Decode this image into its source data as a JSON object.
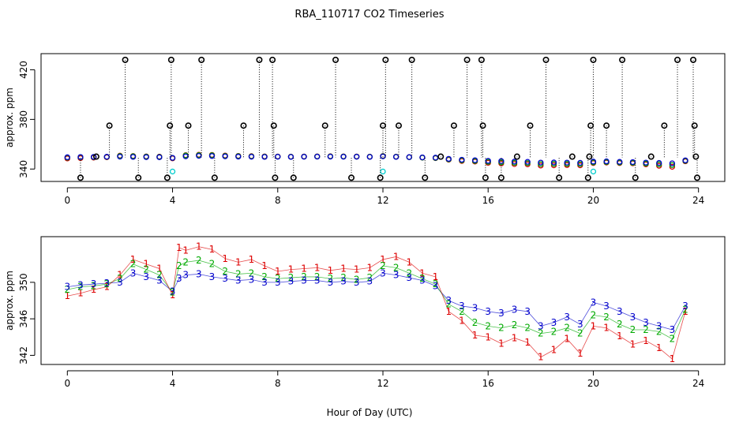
{
  "chart_data": [
    {
      "type": "scatter",
      "title": "RBA_110717  CO2 Timeseries",
      "ylabel": "approx. ppm",
      "xlabel": "",
      "xlim": [
        -1,
        25
      ],
      "ylim": [
        330,
        433
      ],
      "x_ticks": [
        0,
        4,
        8,
        12,
        16,
        20,
        24
      ],
      "y_ticks": [
        340,
        380,
        420
      ],
      "grid": false,
      "series": [
        {
          "color": "#d00000",
          "marker": "circle",
          "x": [
            0,
            0.5,
            1,
            1.5,
            2,
            2.5,
            3,
            3.5,
            4,
            4.5,
            5,
            5.5,
            6,
            6.5,
            7,
            7.5,
            8,
            8.5,
            9,
            9.5,
            10,
            10.5,
            11,
            11.5,
            12,
            12.5,
            13,
            13.5,
            14,
            14.5,
            15,
            15.5,
            16,
            16.5,
            17,
            17.5,
            18,
            18.5,
            19,
            19.5,
            20,
            20.5,
            21,
            21.5,
            22,
            22.5,
            23,
            23.5
          ],
          "values": [
            348.5,
            348.8,
            349.2,
            349.5,
            350.8,
            350.5,
            350.2,
            350.0,
            348.6,
            351.2,
            351.5,
            351.4,
            350.9,
            350.6,
            350.4,
            350.2,
            350.1,
            350.0,
            350.1,
            350.2,
            350.3,
            350.2,
            350.1,
            350.0,
            350.5,
            350.0,
            349.6,
            349.2,
            348.8,
            347.5,
            346.5,
            346.0,
            345.0,
            344.5,
            344.0,
            343.8,
            342.8,
            343.0,
            343.2,
            343.0,
            344.8,
            345.2,
            344.8,
            344.6,
            343.8,
            342.6,
            341.8,
            346.2
          ]
        },
        {
          "color": "#00a000",
          "marker": "circle",
          "x": [
            0,
            0.5,
            1,
            1.5,
            2,
            2.5,
            3,
            3.5,
            4,
            4.5,
            5,
            5.5,
            6,
            6.5,
            7,
            7.5,
            8,
            8.5,
            9,
            9.5,
            10,
            10.5,
            11,
            11.5,
            12,
            12.5,
            13,
            13.5,
            14,
            14.5,
            15,
            15.5,
            16,
            16.5,
            17,
            17.5,
            18,
            18.5,
            19,
            19.5,
            20,
            20.5,
            21,
            21.5,
            22,
            22.5,
            23,
            23.5
          ],
          "values": [
            349.2,
            349.5,
            349.6,
            349.8,
            350.5,
            350.3,
            350.0,
            349.8,
            348.9,
            351.0,
            351.2,
            351.1,
            350.6,
            350.4,
            350.2,
            350.0,
            350.0,
            349.9,
            350.0,
            350.1,
            350.2,
            350.1,
            350.0,
            349.9,
            350.4,
            349.9,
            349.5,
            349.2,
            348.9,
            347.8,
            347.0,
            346.5,
            345.8,
            345.4,
            345.0,
            344.8,
            344.0,
            344.2,
            344.2,
            344.0,
            345.3,
            345.6,
            345.2,
            345.0,
            344.4,
            343.8,
            343.2,
            346.6
          ]
        },
        {
          "color": "#0000cc",
          "marker": "circle",
          "x": [
            0,
            0.5,
            1,
            1.5,
            2,
            2.5,
            3,
            3.5,
            4,
            4.5,
            5,
            5.5,
            6,
            6.5,
            7,
            7.5,
            8,
            8.5,
            9,
            9.5,
            10,
            10.5,
            11,
            11.5,
            12,
            12.5,
            13,
            13.5,
            14,
            14.5,
            15,
            15.5,
            16,
            16.5,
            17,
            17.5,
            18,
            18.5,
            19,
            19.5,
            20,
            20.5,
            21,
            21.5,
            22,
            22.5,
            23,
            23.5
          ],
          "values": [
            349.5,
            349.7,
            349.8,
            349.9,
            350.0,
            349.8,
            349.6,
            349.5,
            349.0,
            350.2,
            350.6,
            350.5,
            350.2,
            350.0,
            349.9,
            349.8,
            349.9,
            349.8,
            349.9,
            350.0,
            350.0,
            349.9,
            349.9,
            349.8,
            350.2,
            349.8,
            349.6,
            349.4,
            349.2,
            348.2,
            347.5,
            347.1,
            346.6,
            346.4,
            346.0,
            345.8,
            345.2,
            345.3,
            345.2,
            345.0,
            346.0,
            346.2,
            345.8,
            345.6,
            345.2,
            344.9,
            344.6,
            347.0
          ]
        },
        {
          "color": "#00cccc",
          "marker": "circle",
          "x": [
            4.0,
            12.0,
            20.0
          ],
          "values": [
            338,
            338,
            338
          ]
        },
        {
          "color": "#000000",
          "marker": "circle",
          "x": [
            0.5,
            1.1,
            1.6,
            2.2,
            2.7,
            3.8,
            3.9,
            3.95,
            4.6,
            5.1,
            5.6,
            6.7,
            7.3,
            7.8,
            7.85,
            7.9,
            8.6,
            9.8,
            10.2,
            10.8,
            11.9,
            12.0,
            12.1,
            12.6,
            13.1,
            13.6,
            14.2,
            14.7,
            15.2,
            15.75,
            15.8,
            15.9,
            16.5,
            17.1,
            17.6,
            18.2,
            18.7,
            19.2,
            19.8,
            19.85,
            19.9,
            20.0,
            20.5,
            21.1,
            21.6,
            22.2,
            22.7,
            23.2,
            23.8,
            23.85,
            23.9,
            23.95
          ],
          "values": [
            333,
            350,
            375,
            428,
            333,
            333,
            375,
            428,
            375,
            428,
            333,
            375,
            428,
            428,
            375,
            333,
            333,
            375,
            428,
            333,
            333,
            375,
            428,
            375,
            428,
            333,
            350,
            375,
            428,
            428,
            375,
            333,
            333,
            350,
            375,
            428,
            333,
            350,
            333,
            350,
            375,
            428,
            375,
            428,
            333,
            350,
            375,
            428,
            428,
            375,
            350,
            333
          ]
        }
      ]
    },
    {
      "type": "scatter",
      "title": "",
      "ylabel": "approx. ppm",
      "xlabel": "Hour of Day (UTC)",
      "xlim": [
        -1,
        25
      ],
      "ylim": [
        341,
        355
      ],
      "x_ticks": [
        0,
        4,
        8,
        12,
        16,
        20,
        24
      ],
      "y_ticks": [
        342,
        346,
        350
      ],
      "grid": false,
      "series": [
        {
          "name": "1",
          "color": "#dd0000",
          "marker": "1",
          "x": [
            0,
            0.5,
            1,
            1.5,
            2,
            2.5,
            3,
            3.5,
            4,
            4.25,
            4.5,
            5,
            5.5,
            6,
            6.5,
            7,
            7.5,
            8,
            8.5,
            9,
            9.5,
            10,
            10.5,
            11,
            11.5,
            12,
            12.5,
            13,
            13.5,
            14,
            14.5,
            15,
            15.5,
            16,
            16.5,
            17,
            17.5,
            18,
            18.5,
            19,
            19.5,
            20,
            20.5,
            21,
            21.5,
            22,
            22.5,
            23,
            23.5
          ],
          "values": [
            348.5,
            348.8,
            349.2,
            349.5,
            350.8,
            352.5,
            352.0,
            351.5,
            348.6,
            353.8,
            353.5,
            353.9,
            353.6,
            352.6,
            352.2,
            352.5,
            351.8,
            351.2,
            351.4,
            351.5,
            351.6,
            351.3,
            351.5,
            351.4,
            351.6,
            352.5,
            352.8,
            352.2,
            351.0,
            350.6,
            346.8,
            345.8,
            344.2,
            344.0,
            343.3,
            343.9,
            343.4,
            341.8,
            342.6,
            343.8,
            342.2,
            345.2,
            345.0,
            344.1,
            343.2,
            343.6,
            342.8,
            341.6,
            346.8
          ]
        },
        {
          "name": "2",
          "color": "#00aa00",
          "marker": "2",
          "x": [
            0,
            0.5,
            1,
            1.5,
            2,
            2.5,
            3,
            3.5,
            4,
            4.25,
            4.5,
            5,
            5.5,
            6,
            6.5,
            7,
            7.5,
            8,
            8.5,
            9,
            9.5,
            10,
            10.5,
            11,
            11.5,
            12,
            12.5,
            13,
            13.5,
            14,
            14.5,
            15,
            15.5,
            16,
            16.5,
            17,
            17.5,
            18,
            18.5,
            19,
            19.5,
            20,
            20.5,
            21,
            21.5,
            22,
            22.5,
            23,
            23.5
          ],
          "values": [
            349.2,
            349.5,
            349.6,
            349.8,
            350.4,
            352.0,
            351.4,
            350.8,
            348.9,
            351.8,
            352.2,
            352.4,
            352.0,
            351.2,
            350.9,
            351.0,
            350.6,
            350.4,
            350.5,
            350.6,
            350.6,
            350.4,
            350.5,
            350.3,
            350.5,
            351.8,
            351.6,
            351.0,
            350.4,
            349.8,
            347.6,
            346.8,
            345.6,
            345.2,
            345.0,
            345.3,
            345.0,
            344.4,
            344.6,
            345.0,
            344.4,
            346.4,
            346.2,
            345.4,
            344.8,
            344.8,
            344.6,
            343.8,
            347.0
          ]
        },
        {
          "name": "3",
          "color": "#0000cc",
          "marker": "3",
          "x": [
            0,
            0.5,
            1,
            1.5,
            2,
            2.5,
            3,
            3.5,
            4,
            4.25,
            4.5,
            5,
            5.5,
            6,
            6.5,
            7,
            7.5,
            8,
            8.5,
            9,
            9.5,
            10,
            10.5,
            11,
            11.5,
            12,
            12.5,
            13,
            13.5,
            14,
            14.5,
            15,
            15.5,
            16,
            16.5,
            17,
            17.5,
            18,
            18.5,
            19,
            19.5,
            20,
            20.5,
            21,
            21.5,
            22,
            22.5,
            23,
            23.5
          ],
          "values": [
            349.5,
            349.7,
            349.8,
            349.9,
            350.0,
            351.0,
            350.6,
            350.2,
            349.0,
            350.4,
            350.8,
            350.9,
            350.6,
            350.4,
            350.2,
            350.3,
            350.0,
            350.0,
            350.1,
            350.2,
            350.2,
            350.0,
            350.1,
            350.0,
            350.1,
            351.0,
            350.8,
            350.5,
            350.2,
            349.6,
            348.0,
            347.4,
            347.2,
            346.8,
            346.6,
            347.0,
            346.8,
            345.2,
            345.6,
            346.2,
            345.4,
            347.8,
            347.4,
            346.8,
            346.2,
            345.6,
            345.2,
            344.8,
            347.4
          ]
        }
      ]
    }
  ]
}
